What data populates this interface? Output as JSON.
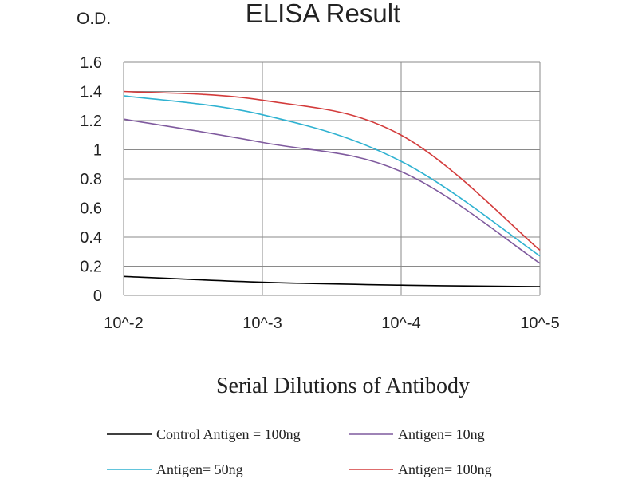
{
  "chart_data": {
    "type": "line",
    "title": "ELISA Result",
    "ylabel": "O.D.",
    "xlabel": "Serial Dilutions of Antibody",
    "x_tick_labels": [
      "10^-2",
      "10^-3",
      "10^-4",
      "10^-5"
    ],
    "x_scale": "log",
    "x_reversed": true,
    "ylim": [
      0,
      1.6
    ],
    "y_tick_labels": [
      "0",
      "0.2",
      "0.4",
      "0.6",
      "0.8",
      "1",
      "1.2",
      "1.4",
      "1.6"
    ],
    "grid": true,
    "legend_position": "bottom",
    "series": [
      {
        "name": "Control Antigen = 100ng",
        "color": "#000000",
        "x": [
          0.01,
          0.001,
          0.0001,
          1e-05
        ],
        "values": [
          0.13,
          0.09,
          0.07,
          0.06
        ]
      },
      {
        "name": "Antigen= 10ng",
        "color": "#7f5a9e",
        "x": [
          0.01,
          0.001,
          0.0001,
          1e-05
        ],
        "values": [
          1.21,
          1.05,
          0.85,
          0.22
        ]
      },
      {
        "name": "Antigen= 50ng",
        "color": "#2fb2d1",
        "x": [
          0.01,
          0.001,
          0.0001,
          1e-05
        ],
        "values": [
          1.37,
          1.24,
          0.92,
          0.27
        ]
      },
      {
        "name": "Antigen= 100ng",
        "color": "#d33b3b",
        "x": [
          0.01,
          0.001,
          0.0001,
          1e-05
        ],
        "values": [
          1.4,
          1.34,
          1.1,
          0.31
        ]
      }
    ]
  }
}
